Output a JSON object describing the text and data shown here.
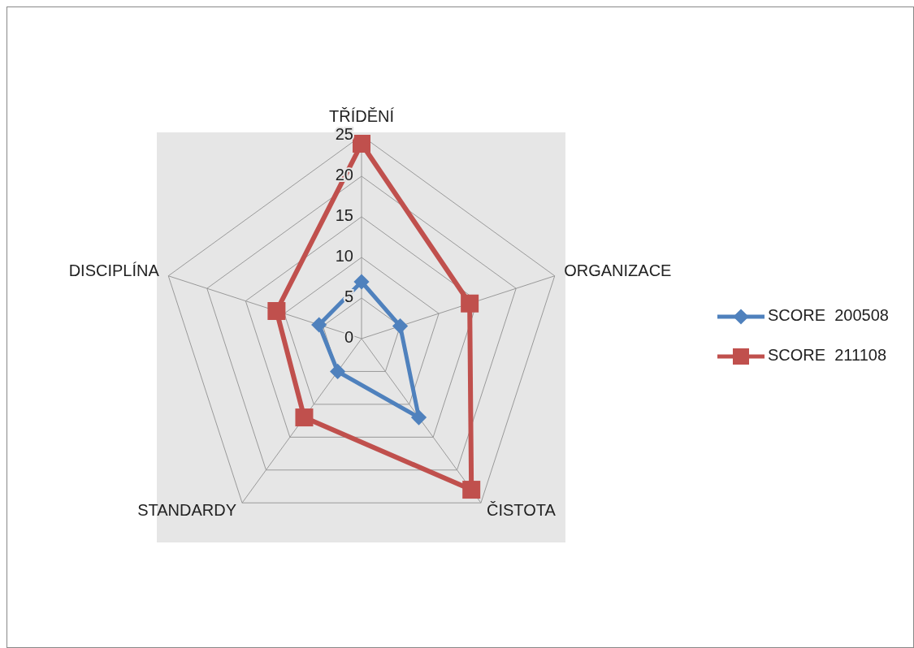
{
  "chart_data": {
    "type": "radar",
    "categories": [
      "TŘÍDĚNÍ",
      "ORGANIZACE",
      "ČISTOTA",
      "STANDARDY",
      "DISCIPLÍNA"
    ],
    "series": [
      {
        "name": "SCORE  200508",
        "color": "#4f81bd",
        "marker": "diamond",
        "values": [
          7,
          5,
          12,
          5,
          5.5
        ]
      },
      {
        "name": "SCORE  211108",
        "color": "#c0504d",
        "marker": "square",
        "values": [
          24,
          14,
          23,
          12,
          11
        ]
      }
    ],
    "ylim": [
      0,
      25
    ],
    "yticks": [
      0,
      5,
      10,
      15,
      20,
      25
    ],
    "grid": true,
    "legend": "right"
  }
}
